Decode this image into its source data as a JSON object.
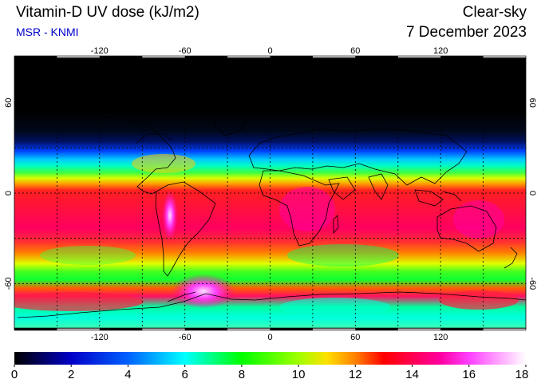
{
  "header": {
    "title": "Vitamin-D UV dose (kJ/m2)",
    "source": "MSR - KNMI",
    "mode": "Clear-sky",
    "date": "7 December 2023",
    "source_color": "#0000cc"
  },
  "map": {
    "projection": "equirectangular",
    "lon_range": [
      -180,
      180
    ],
    "lat_range": [
      -90,
      90
    ],
    "lon_ticks": [
      "-120",
      "-60",
      "0",
      "60",
      "120"
    ],
    "lat_ticks": [
      "60",
      "0",
      "-60"
    ],
    "grid": "dashed, every 30 degrees"
  },
  "colorbar": {
    "min": 0,
    "max": 18,
    "tick_labels": [
      "0",
      "2",
      "4",
      "6",
      "8",
      "10",
      "12",
      "14",
      "16",
      "18"
    ],
    "colors": [
      "#000000",
      "#0000ff",
      "#00ffff",
      "#00ff00",
      "#ffff00",
      "#ff0000",
      "#ff00ff",
      "#ffffff"
    ]
  }
}
